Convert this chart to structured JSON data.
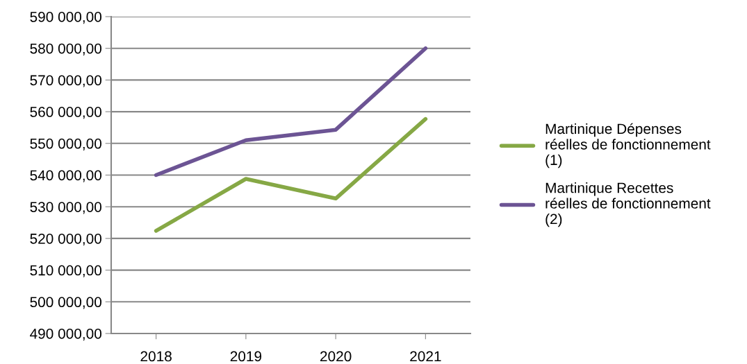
{
  "chart_data": {
    "type": "line",
    "categories": [
      "2018",
      "2019",
      "2020",
      "2021"
    ],
    "series": [
      {
        "name": "Martinique Dépenses réelles de fonctionnement (1)",
        "color": "#86a845",
        "values": [
          522400,
          538800,
          532600,
          557700
        ]
      },
      {
        "name": "Martinique Recettes réelles de fonctionnement (2)",
        "color": "#6c5494",
        "values": [
          540000,
          551000,
          554300,
          580000
        ]
      }
    ],
    "ylim": [
      490000,
      590000
    ],
    "yticks": [
      {
        "value": 490000,
        "label": "490 000,00"
      },
      {
        "value": 500000,
        "label": "500 000,00"
      },
      {
        "value": 510000,
        "label": "510 000,00"
      },
      {
        "value": 520000,
        "label": "520 000,00"
      },
      {
        "value": 530000,
        "label": "530 000,00"
      },
      {
        "value": 540000,
        "label": "540 000,00"
      },
      {
        "value": 550000,
        "label": "550 000,00"
      },
      {
        "value": 560000,
        "label": "560 000,00"
      },
      {
        "value": 570000,
        "label": "570 000,00"
      },
      {
        "value": 580000,
        "label": "580 000,00"
      },
      {
        "value": 590000,
        "label": "590 000,00"
      }
    ],
    "grid": "y",
    "legend": "right",
    "marker": "none",
    "line_style": "solid"
  }
}
